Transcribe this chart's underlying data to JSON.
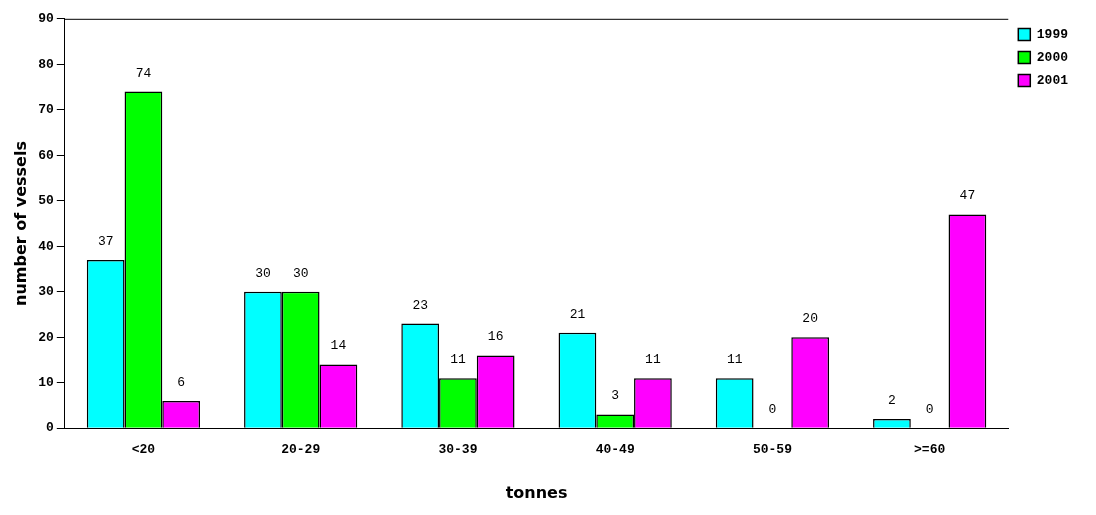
{
  "chart_data": {
    "type": "bar",
    "xlabel": "tonnes",
    "ylabel": "number of vessels",
    "categories": [
      "<20",
      "20-29",
      "30-39",
      "40-49",
      "50-59",
      ">=60"
    ],
    "series": [
      {
        "name": "1999",
        "color": "#00ffff",
        "values": [
          37,
          30,
          23,
          21,
          11,
          2
        ]
      },
      {
        "name": "2000",
        "color": "#00ff00",
        "values": [
          74,
          30,
          11,
          3,
          0,
          0
        ]
      },
      {
        "name": "2001",
        "color": "#ff00ff",
        "values": [
          6,
          14,
          16,
          11,
          20,
          47
        ]
      }
    ],
    "ylim": [
      0,
      90
    ],
    "yticks": [
      0,
      10,
      20,
      30,
      40,
      50,
      60,
      70,
      80,
      90
    ],
    "grid": false,
    "legend": "top right",
    "data_labels": true
  }
}
